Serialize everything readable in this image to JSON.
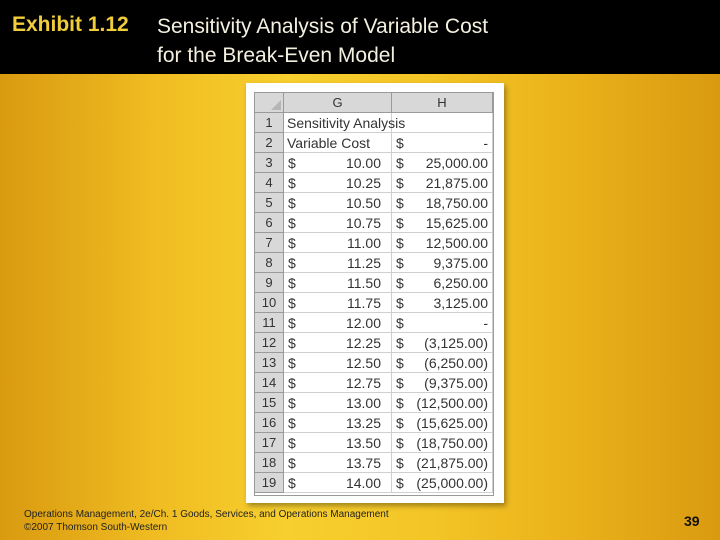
{
  "title": {
    "label": "Exhibit 1.12",
    "main": "Sensitivity Analysis of Variable Cost\nfor the Break-Even Model"
  },
  "spreadsheet": {
    "columns": [
      "G",
      "H"
    ],
    "rows": [
      {
        "num": "1",
        "g_text": "Sensitivity Analysis",
        "g_cur": "",
        "g_val": "",
        "h_cur": "",
        "h_val": ""
      },
      {
        "num": "2",
        "g_text": "Variable Cost",
        "g_cur": "",
        "g_val": "",
        "h_cur": "$",
        "h_val": "-"
      },
      {
        "num": "3",
        "g_text": "",
        "g_cur": "$",
        "g_val": "10.00",
        "h_cur": "$",
        "h_val": "25,000.00"
      },
      {
        "num": "4",
        "g_text": "",
        "g_cur": "$",
        "g_val": "10.25",
        "h_cur": "$",
        "h_val": "21,875.00"
      },
      {
        "num": "5",
        "g_text": "",
        "g_cur": "$",
        "g_val": "10.50",
        "h_cur": "$",
        "h_val": "18,750.00"
      },
      {
        "num": "6",
        "g_text": "",
        "g_cur": "$",
        "g_val": "10.75",
        "h_cur": "$",
        "h_val": "15,625.00"
      },
      {
        "num": "7",
        "g_text": "",
        "g_cur": "$",
        "g_val": "11.00",
        "h_cur": "$",
        "h_val": "12,500.00"
      },
      {
        "num": "8",
        "g_text": "",
        "g_cur": "$",
        "g_val": "11.25",
        "h_cur": "$",
        "h_val": "9,375.00"
      },
      {
        "num": "9",
        "g_text": "",
        "g_cur": "$",
        "g_val": "11.50",
        "h_cur": "$",
        "h_val": "6,250.00"
      },
      {
        "num": "10",
        "g_text": "",
        "g_cur": "$",
        "g_val": "11.75",
        "h_cur": "$",
        "h_val": "3,125.00"
      },
      {
        "num": "11",
        "g_text": "",
        "g_cur": "$",
        "g_val": "12.00",
        "h_cur": "$",
        "h_val": "-"
      },
      {
        "num": "12",
        "g_text": "",
        "g_cur": "$",
        "g_val": "12.25",
        "h_cur": "$",
        "h_val": "(3,125.00)"
      },
      {
        "num": "13",
        "g_text": "",
        "g_cur": "$",
        "g_val": "12.50",
        "h_cur": "$",
        "h_val": "(6,250.00)"
      },
      {
        "num": "14",
        "g_text": "",
        "g_cur": "$",
        "g_val": "12.75",
        "h_cur": "$",
        "h_val": "(9,375.00)"
      },
      {
        "num": "15",
        "g_text": "",
        "g_cur": "$",
        "g_val": "13.00",
        "h_cur": "$",
        "h_val": "(12,500.00)"
      },
      {
        "num": "16",
        "g_text": "",
        "g_cur": "$",
        "g_val": "13.25",
        "h_cur": "$",
        "h_val": "(15,625.00)"
      },
      {
        "num": "17",
        "g_text": "",
        "g_cur": "$",
        "g_val": "13.50",
        "h_cur": "$",
        "h_val": "(18,750.00)"
      },
      {
        "num": "18",
        "g_text": "",
        "g_cur": "$",
        "g_val": "13.75",
        "h_cur": "$",
        "h_val": "(21,875.00)"
      },
      {
        "num": "19",
        "g_text": "",
        "g_cur": "$",
        "g_val": "14.00",
        "h_cur": "$",
        "h_val": "(25,000.00)"
      }
    ]
  },
  "footer": {
    "line1": "Operations Management, 2e/Ch. 1 Goods, Services, and Operations Management",
    "line2": "©2007 Thomson South-Western"
  },
  "page_number": "39"
}
